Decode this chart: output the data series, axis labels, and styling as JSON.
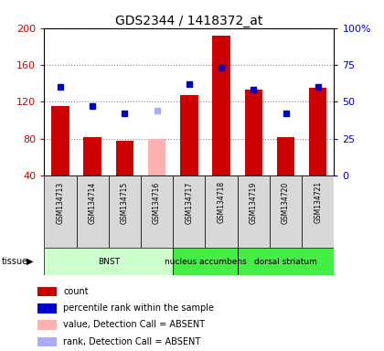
{
  "title": "GDS2344 / 1418372_at",
  "samples": [
    "GSM134713",
    "GSM134714",
    "GSM134715",
    "GSM134716",
    "GSM134717",
    "GSM134718",
    "GSM134719",
    "GSM134720",
    "GSM134721"
  ],
  "bar_values": [
    115,
    82,
    78,
    null,
    127,
    192,
    133,
    82,
    135
  ],
  "bar_absent_values": [
    null,
    null,
    null,
    80,
    null,
    null,
    null,
    null,
    null
  ],
  "dot_values": [
    60,
    47,
    42,
    null,
    62,
    73,
    58,
    42,
    60
  ],
  "dot_absent_values": [
    null,
    null,
    null,
    44,
    null,
    null,
    null,
    null,
    null
  ],
  "bar_color": "#cc0000",
  "bar_absent_color": "#ffb0b0",
  "dot_color": "#0000cc",
  "dot_absent_color": "#aaaaff",
  "ylim_left": [
    40,
    200
  ],
  "ylim_right": [
    0,
    100
  ],
  "yticks_left": [
    40,
    80,
    120,
    160,
    200
  ],
  "yticks_right": [
    0,
    25,
    50,
    75,
    100
  ],
  "ytick_labels_left": [
    "40",
    "80",
    "120",
    "160",
    "200"
  ],
  "ytick_labels_right": [
    "0",
    "25",
    "50",
    "75",
    "100%"
  ],
  "grid_color": "#888888",
  "tissue_groups": [
    {
      "label": "BNST",
      "cols": [
        0,
        1,
        2,
        3
      ],
      "color": "#ccffcc"
    },
    {
      "label": "nucleus accumbens",
      "cols": [
        4,
        5
      ],
      "color": "#44ee44"
    },
    {
      "label": "dorsal striatum",
      "cols": [
        6,
        7,
        8
      ],
      "color": "#44ee44"
    }
  ],
  "legend_items": [
    {
      "label": "count",
      "color": "#cc0000"
    },
    {
      "label": "percentile rank within the sample",
      "color": "#0000cc"
    },
    {
      "label": "value, Detection Call = ABSENT",
      "color": "#ffb0b0"
    },
    {
      "label": "rank, Detection Call = ABSENT",
      "color": "#aaaaff"
    }
  ],
  "sample_bg": "#d8d8d8",
  "background_color": "#ffffff"
}
